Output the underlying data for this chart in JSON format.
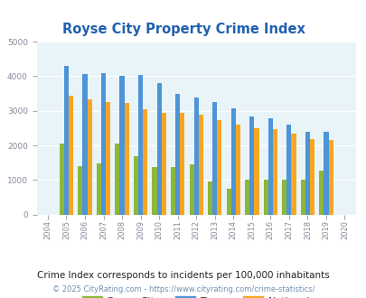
{
  "title": "Royse City Property Crime Index",
  "years": [
    2004,
    2005,
    2006,
    2007,
    2008,
    2009,
    2010,
    2011,
    2012,
    2013,
    2014,
    2015,
    2016,
    2017,
    2018,
    2019,
    2020
  ],
  "royse_city": [
    null,
    2050,
    1400,
    1470,
    2050,
    1700,
    1380,
    1380,
    1450,
    950,
    760,
    1020,
    1020,
    1020,
    1020,
    1270,
    null
  ],
  "texas": [
    null,
    4300,
    4060,
    4100,
    4000,
    4030,
    3800,
    3500,
    3380,
    3260,
    3060,
    2850,
    2780,
    2600,
    2400,
    2400,
    null
  ],
  "national": [
    null,
    3450,
    3340,
    3250,
    3220,
    3050,
    2950,
    2950,
    2890,
    2740,
    2600,
    2490,
    2460,
    2340,
    2190,
    2150,
    null
  ],
  "royse_color": "#8db73a",
  "texas_color": "#4d94d9",
  "national_color": "#f5a623",
  "bg_color": "#ddeef6",
  "plot_bg_color": "#e8f4f8",
  "ylim": [
    0,
    5000
  ],
  "yticks": [
    0,
    1000,
    2000,
    3000,
    4000,
    5000
  ],
  "subtitle": "Crime Index corresponds to incidents per 100,000 inhabitants",
  "footer": "© 2025 CityRating.com - https://www.cityrating.com/crime-statistics/",
  "title_color": "#2060b0",
  "subtitle_color": "#222222",
  "footer_color": "#7090b0"
}
